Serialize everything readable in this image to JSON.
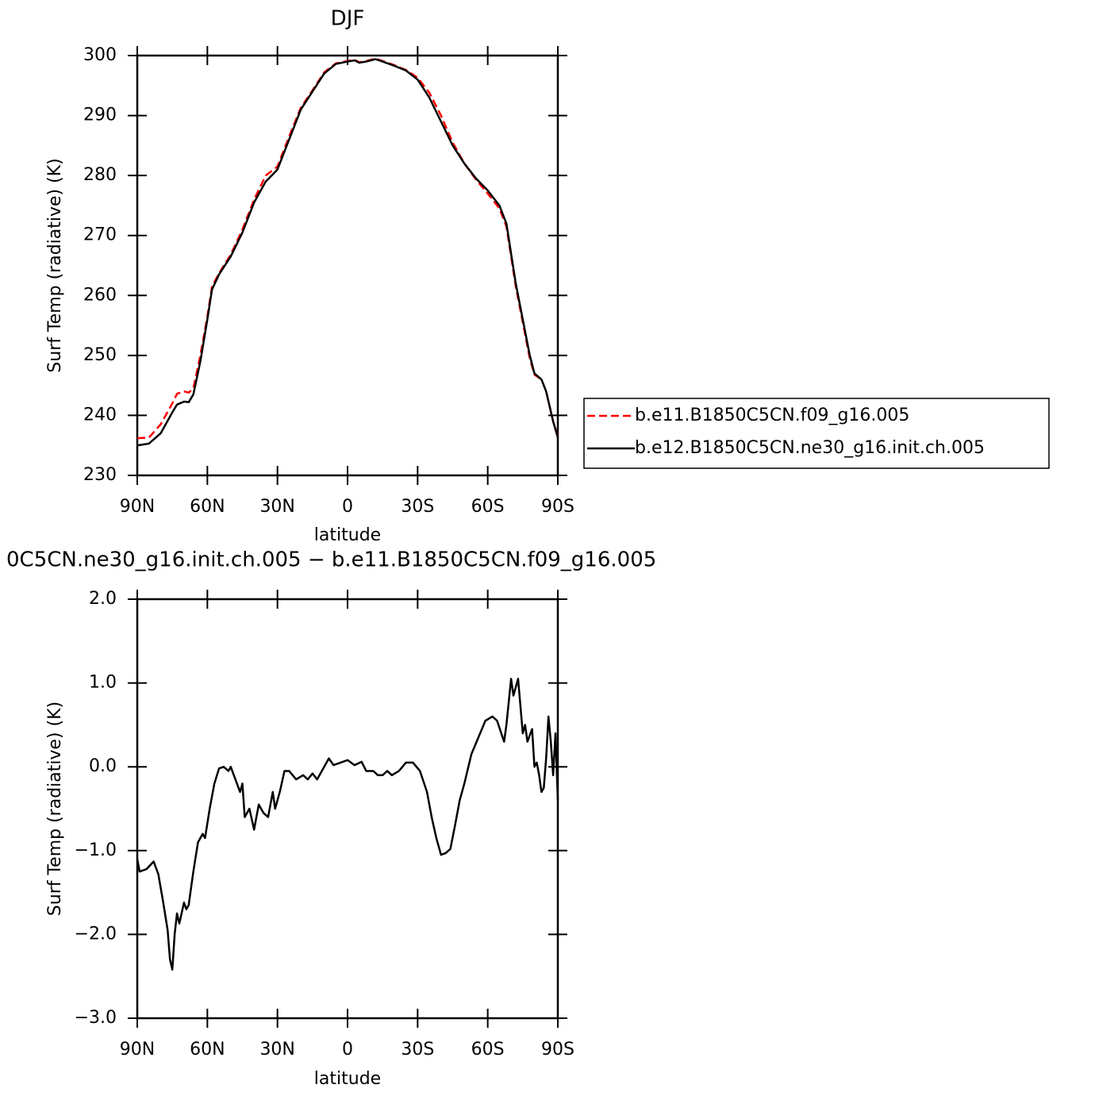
{
  "chart_data": [
    {
      "type": "line",
      "title": "DJF",
      "ylabel": "Surf Temp (radiative) (K)",
      "xlabel": "latitude",
      "xlim": [
        90,
        -90
      ],
      "xticks": [
        {
          "value": 90,
          "label": "90N"
        },
        {
          "value": 60,
          "label": "60N"
        },
        {
          "value": 30,
          "label": "30N"
        },
        0,
        {
          "value": -30,
          "label": "30S"
        },
        {
          "value": -60,
          "label": "60S"
        },
        {
          "value": -90,
          "label": "90S"
        }
      ],
      "ylim": [
        230,
        300
      ],
      "yticks": [
        230,
        240,
        250,
        260,
        270,
        280,
        290,
        300
      ],
      "legend": "right",
      "x": [
        90,
        85,
        80,
        75,
        73,
        70,
        68,
        66,
        63,
        60,
        58,
        55,
        50,
        45,
        40,
        35,
        30,
        25,
        20,
        15,
        10,
        5,
        0,
        -3,
        -5,
        -8,
        -12,
        -15,
        -20,
        -25,
        -30,
        -35,
        -40,
        -45,
        -50,
        -55,
        -60,
        -65,
        -68,
        -70,
        -72,
        -75,
        -78,
        -80,
        -83,
        -85,
        -88,
        -90
      ],
      "series": [
        {
          "name": "b.e11.B1850C5CN.f09_g16.005",
          "color": "#ff0000",
          "dashed": true,
          "values": [
            236.2,
            236.3,
            238.5,
            242,
            243.6,
            244,
            243.8,
            244.5,
            250,
            256.5,
            261.5,
            263.7,
            266.8,
            271,
            276,
            280,
            281.5,
            286.5,
            291.3,
            294.2,
            297.2,
            298.7,
            299.1,
            299.3,
            298.9,
            299.1,
            299.5,
            299.1,
            298.4,
            297.6,
            296.3,
            293.8,
            290,
            285.5,
            282,
            279.3,
            277,
            274.5,
            271.5,
            266.5,
            261.5,
            255.5,
            249.5,
            246.8,
            246,
            244,
            239,
            236.5
          ]
        },
        {
          "name": "b.e12.B1850C5CN.ne30_g16.init.ch.005",
          "color": "#000000",
          "dashed": false,
          "values": [
            235,
            235.3,
            237,
            240.5,
            241.8,
            242.3,
            242.2,
            243.5,
            249,
            256,
            261,
            263.5,
            266.5,
            270.5,
            275.5,
            279,
            281,
            286,
            291,
            294,
            297,
            298.6,
            299,
            299.2,
            298.8,
            299,
            299.4,
            299,
            298.3,
            297.5,
            296,
            293,
            289,
            285,
            282,
            279.5,
            277.5,
            275,
            272,
            267,
            262,
            256,
            250,
            247,
            246,
            244,
            239,
            236.3
          ]
        }
      ]
    },
    {
      "type": "line",
      "title": "0C5CN.ne30_g16.init.ch.005 − b.e11.B1850C5CN.f09_g16.005",
      "ylabel": "Surf Temp (radiative) (K)",
      "xlabel": "latitude",
      "xlim": [
        90,
        -90
      ],
      "xticks": [
        {
          "value": 90,
          "label": "90N"
        },
        {
          "value": 60,
          "label": "60N"
        },
        {
          "value": 30,
          "label": "30N"
        },
        0,
        {
          "value": -30,
          "label": "30S"
        },
        {
          "value": -60,
          "label": "60S"
        },
        {
          "value": -90,
          "label": "90S"
        }
      ],
      "ylim": [
        -3,
        2
      ],
      "yticks": [
        {
          "value": -3,
          "label": "−3.0"
        },
        {
          "value": -2,
          "label": "−2.0"
        },
        {
          "value": -1,
          "label": "−1.0"
        },
        {
          "value": 0,
          "label": "0.0"
        },
        {
          "value": 1,
          "label": "1.0"
        },
        {
          "value": 2,
          "label": "2.0"
        }
      ],
      "x": [
        90,
        89,
        86,
        83,
        81,
        79,
        77,
        76,
        75,
        74,
        73,
        72,
        70,
        69,
        68,
        66,
        64,
        62,
        61,
        59,
        57,
        55,
        53,
        51,
        50,
        48,
        46,
        45,
        44,
        42,
        40,
        38,
        36,
        34,
        32,
        31,
        29,
        27,
        25,
        22,
        19,
        17,
        15,
        13,
        11,
        8,
        6,
        3,
        0,
        -3,
        -6,
        -8,
        -11,
        -13,
        -15,
        -17,
        -19,
        -22,
        -25,
        -28,
        -31,
        -34,
        -36,
        -38,
        -40,
        -42,
        -44,
        -46,
        -48,
        -50,
        -53,
        -56,
        -59,
        -62,
        -64,
        -67,
        -68,
        -70,
        -71,
        -73,
        -75,
        -76,
        -77,
        -79,
        -80,
        -81,
        -82,
        -83,
        -84,
        -85,
        -86,
        -87,
        -88,
        -89,
        -90
      ],
      "series": [
        {
          "color": "#000000",
          "dashed": false,
          "values": [
            -1.1,
            -1.25,
            -1.22,
            -1.13,
            -1.28,
            -1.6,
            -1.95,
            -2.3,
            -2.42,
            -2.0,
            -1.75,
            -1.87,
            -1.62,
            -1.7,
            -1.65,
            -1.25,
            -0.9,
            -0.8,
            -0.85,
            -0.5,
            -0.2,
            -0.02,
            0.0,
            -0.05,
            0.0,
            -0.15,
            -0.3,
            -0.2,
            -0.6,
            -0.5,
            -0.75,
            -0.45,
            -0.55,
            -0.6,
            -0.3,
            -0.5,
            -0.3,
            -0.05,
            -0.05,
            -0.15,
            -0.1,
            -0.15,
            -0.08,
            -0.15,
            -0.05,
            0.1,
            0.02,
            0.05,
            0.08,
            0.02,
            0.06,
            -0.05,
            -0.05,
            -0.1,
            -0.1,
            -0.05,
            -0.1,
            -0.05,
            0.05,
            0.05,
            -0.05,
            -0.3,
            -0.6,
            -0.85,
            -1.05,
            -1.03,
            -0.98,
            -0.7,
            -0.4,
            -0.2,
            0.15,
            0.35,
            0.55,
            0.6,
            0.55,
            0.3,
            0.5,
            1.05,
            0.85,
            1.05,
            0.4,
            0.5,
            0.3,
            0.45,
            0.0,
            0.05,
            -0.1,
            -0.3,
            -0.25,
            0.1,
            0.6,
            0.3,
            -0.1,
            0.4,
            -0.4
          ]
        }
      ]
    }
  ]
}
